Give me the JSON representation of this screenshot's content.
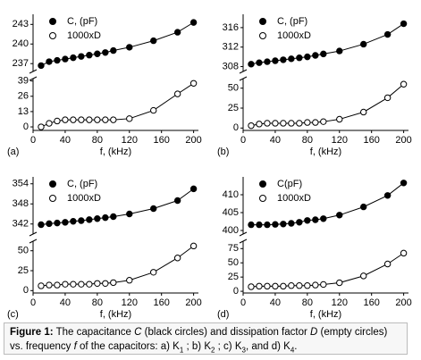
{
  "chart_data": [
    {
      "type": "line",
      "panel": "(a)",
      "xlabel": "f, (kHz)",
      "xlim": [
        0,
        206
      ],
      "xticks": [
        0,
        40,
        80,
        120,
        160,
        200
      ],
      "ylim": [
        -3,
        41
      ],
      "yticks": [
        0,
        13,
        26,
        39
      ],
      "y2lim": [
        235.8,
        244
      ],
      "y2ticks": [
        237,
        240,
        243
      ],
      "x": [
        10,
        20,
        30,
        40,
        50,
        60,
        70,
        80,
        90,
        100,
        120,
        150,
        180,
        200
      ],
      "series": [
        {
          "name": "C, (pF)",
          "axis": "y2",
          "color": "#000000",
          "marker": "filled",
          "values": [
            236.7,
            237.3,
            237.5,
            237.7,
            237.9,
            238.1,
            238.3,
            238.5,
            238.7,
            239.0,
            239.5,
            240.5,
            241.8,
            243.3
          ]
        },
        {
          "name": "1000xD",
          "color": "#000000",
          "marker": "open",
          "values": [
            0,
            3,
            5,
            6,
            6,
            6,
            6,
            6,
            6,
            6,
            7,
            14,
            28,
            37
          ]
        }
      ]
    },
    {
      "type": "line",
      "panel": "(b)",
      "xlabel": "f, (kHz)",
      "xlim": [
        0,
        206
      ],
      "xticks": [
        0,
        40,
        80,
        120,
        160,
        200
      ],
      "ylim": [
        -3,
        62
      ],
      "yticks": [
        0,
        25,
        50
      ],
      "y2lim": [
        307,
        318
      ],
      "y2ticks": [
        308,
        312,
        316
      ],
      "x": [
        10,
        20,
        30,
        40,
        50,
        60,
        70,
        80,
        90,
        100,
        120,
        150,
        180,
        200
      ],
      "series": [
        {
          "name": "C, (pF)",
          "axis": "y2",
          "color": "#000000",
          "marker": "filled",
          "values": [
            308.5,
            308.8,
            309.0,
            309.2,
            309.4,
            309.6,
            309.8,
            310.0,
            310.3,
            310.6,
            311.2,
            312.6,
            314.6,
            316.8
          ]
        },
        {
          "name": "1000xD",
          "color": "#000000",
          "marker": "open",
          "values": [
            3,
            5,
            6,
            6,
            6,
            6,
            6,
            7,
            7,
            8,
            11,
            20,
            38,
            55
          ]
        }
      ]
    },
    {
      "type": "line",
      "panel": "(c)",
      "xlabel": "f, (kHz)",
      "xlim": [
        0,
        206
      ],
      "xticks": [
        0,
        40,
        80,
        120,
        160,
        200
      ],
      "ylim": [
        -3,
        62
      ],
      "yticks": [
        0,
        25,
        50
      ],
      "y2lim": [
        339,
        355
      ],
      "y2ticks": [
        342,
        348,
        354
      ],
      "x": [
        10,
        20,
        30,
        40,
        50,
        60,
        70,
        80,
        90,
        100,
        120,
        150,
        180,
        200
      ],
      "series": [
        {
          "name": "C, (pF)",
          "axis": "y2",
          "color": "#000000",
          "marker": "filled",
          "values": [
            341.8,
            342.1,
            342.3,
            342.5,
            342.8,
            343.0,
            343.3,
            343.6,
            343.9,
            344.2,
            345.0,
            346.6,
            349.0,
            352.5
          ]
        },
        {
          "name": "1000xD",
          "color": "#000000",
          "marker": "open",
          "values": [
            6,
            7,
            7,
            8,
            8,
            8,
            8,
            9,
            9,
            10,
            13,
            23,
            41,
            56
          ]
        }
      ]
    },
    {
      "type": "line",
      "panel": "(d)",
      "xlabel": "f, (kHz)",
      "xlim": [
        0,
        206
      ],
      "xticks": [
        0,
        40,
        80,
        120,
        160,
        200
      ],
      "ylim": [
        -3,
        88
      ],
      "yticks": [
        0,
        25,
        50,
        75
      ],
      "y2lim": [
        399,
        414
      ],
      "y2ticks": [
        400,
        405,
        410
      ],
      "x": [
        10,
        20,
        30,
        40,
        50,
        60,
        70,
        80,
        90,
        100,
        120,
        150,
        180,
        200
      ],
      "series": [
        {
          "name": "C(pF)",
          "axis": "y2",
          "color": "#000000",
          "marker": "filled",
          "values": [
            401.6,
            401.6,
            401.6,
            401.7,
            401.8,
            402.0,
            402.3,
            402.8,
            403.0,
            403.3,
            404.3,
            406.6,
            409.8,
            413.3
          ]
        },
        {
          "name": "1000xD",
          "color": "#000000",
          "marker": "open",
          "values": [
            8,
            9,
            9,
            9,
            9,
            10,
            10,
            10,
            11,
            12,
            15,
            27,
            48,
            67
          ]
        }
      ]
    }
  ],
  "caption": {
    "label": "Figure 1:",
    "parts": [
      "The capacitance ",
      "C",
      " (black circles) and dissipation factor ",
      "D",
      " (empty circles) vs. frequency ",
      "f",
      " of the capacitors:  a) K",
      "1",
      " ; b) K",
      "2",
      " ; c) K",
      "3",
      ", and d) K",
      "4",
      "."
    ]
  }
}
